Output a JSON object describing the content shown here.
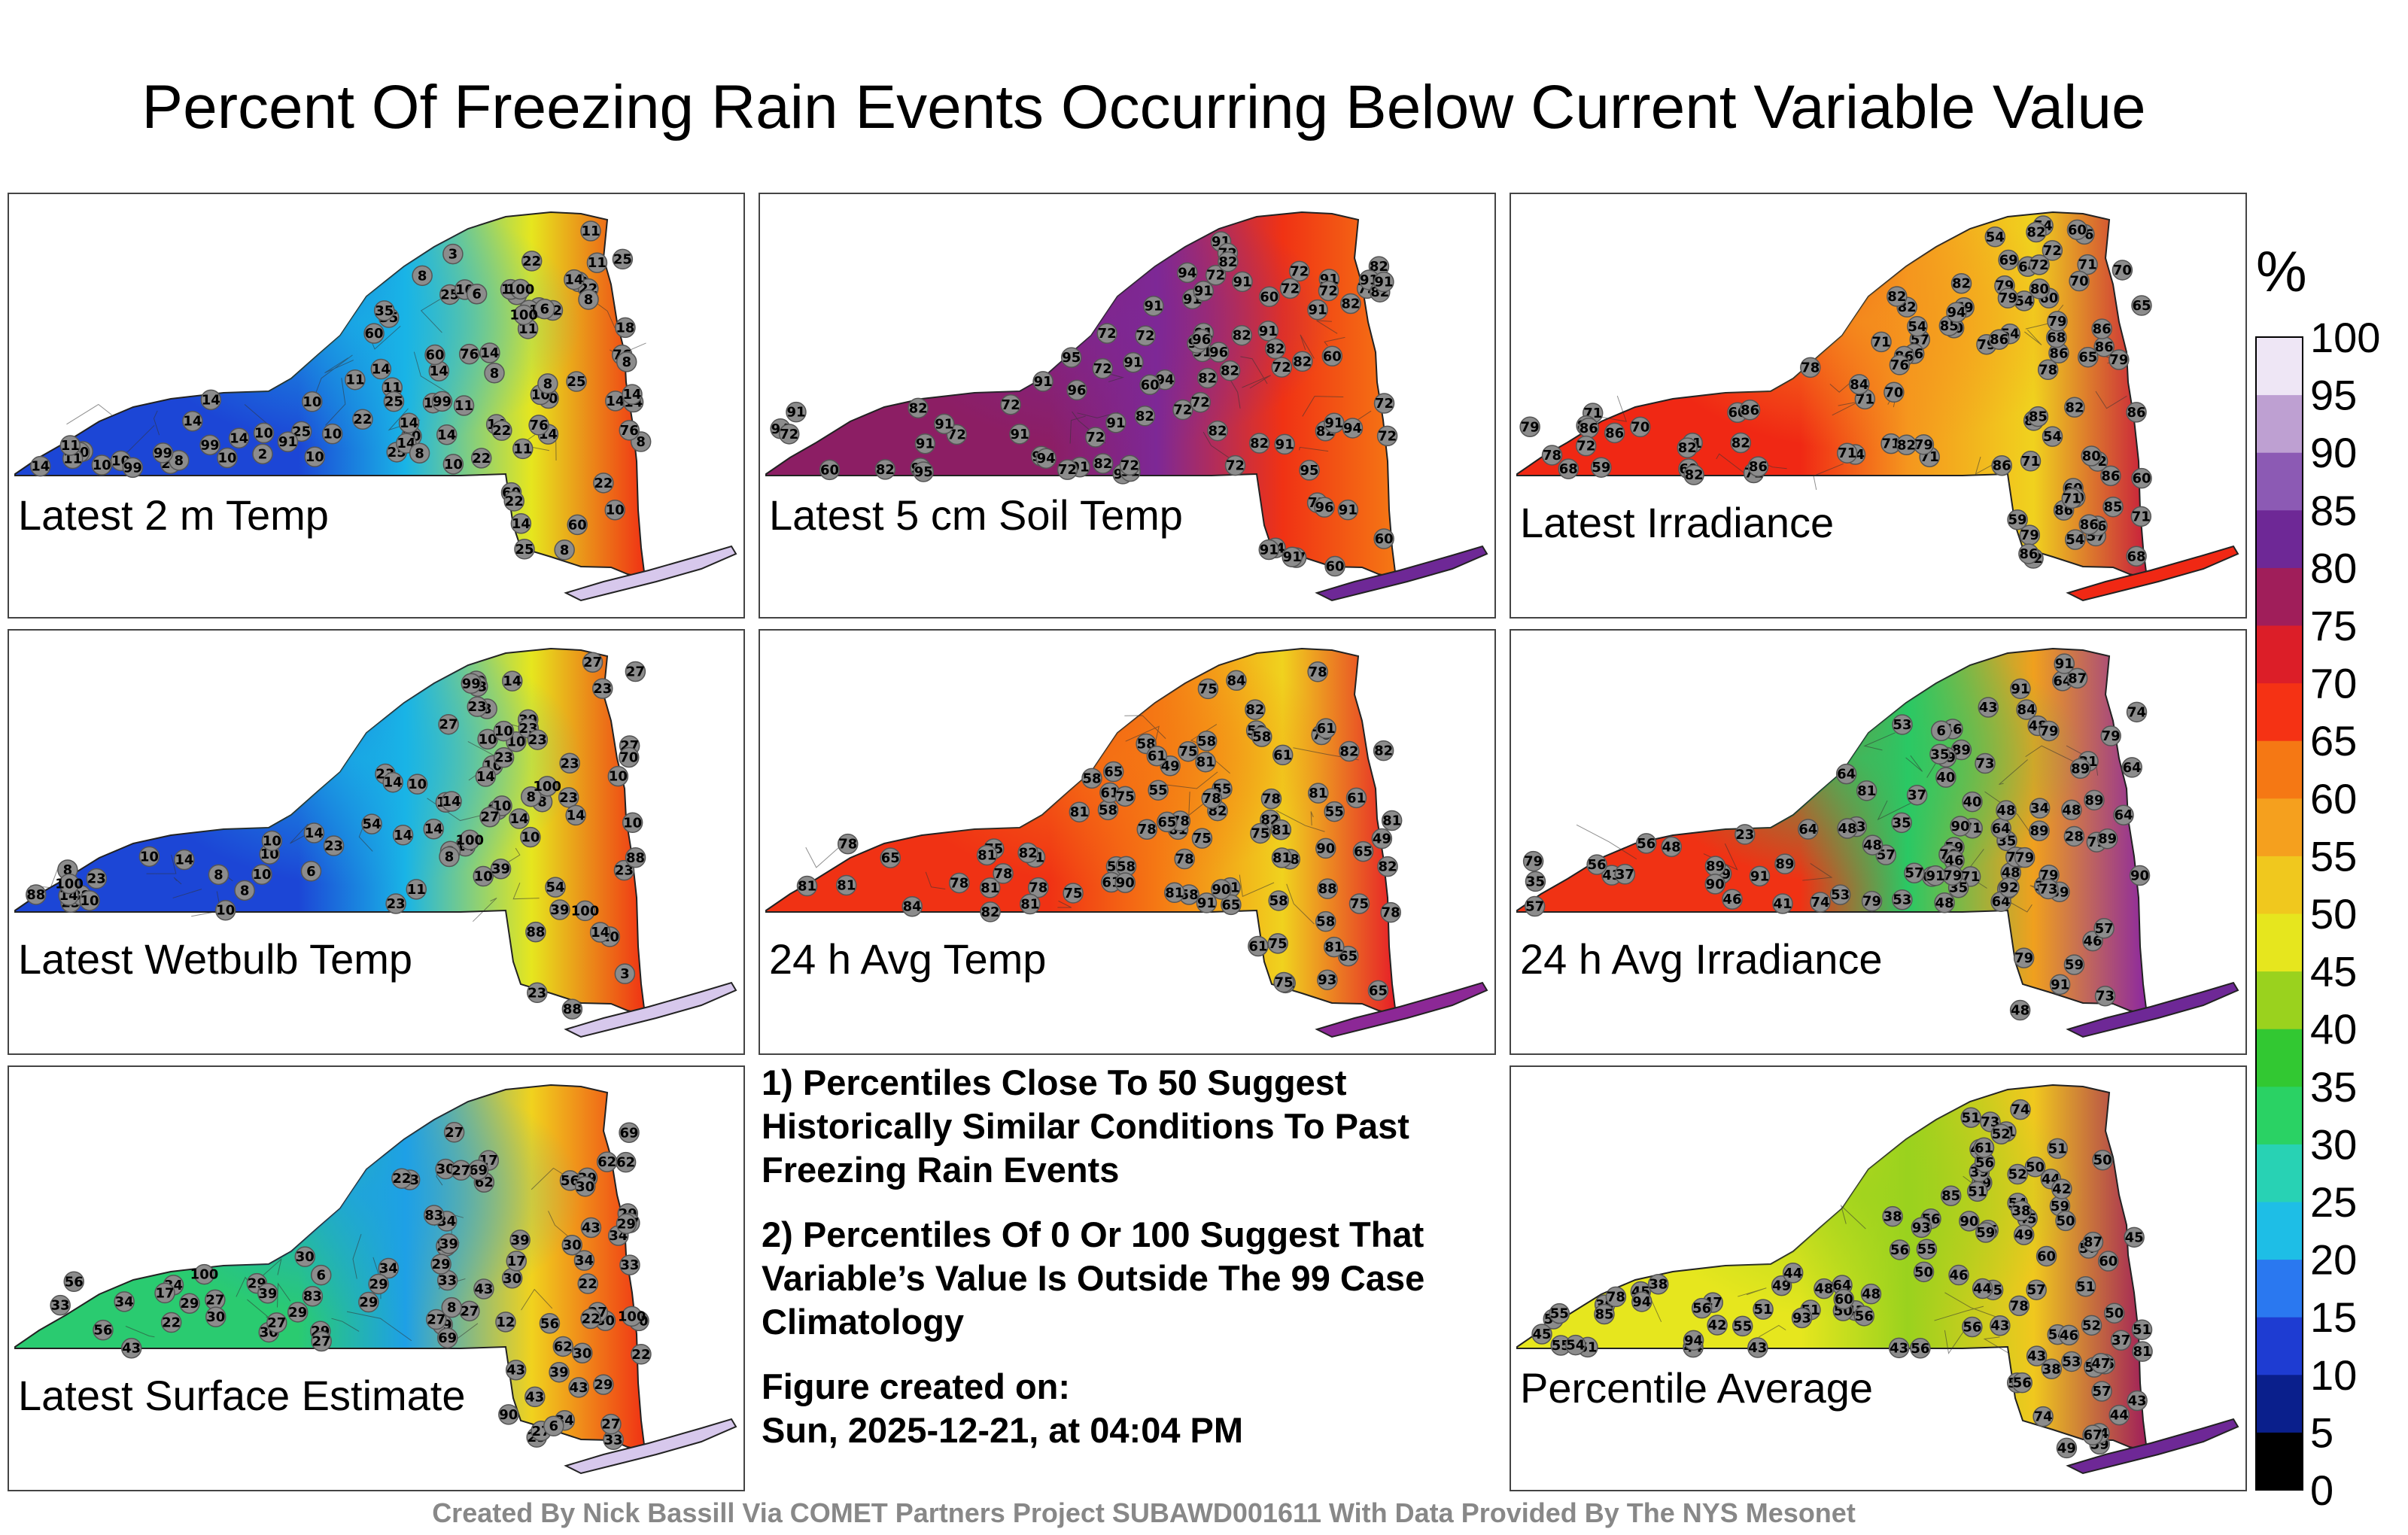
{
  "title": "Percent Of Freezing Rain Events Occurring Below Current Variable Value",
  "footer": "Created By Nick Bassill Via COMET Partners Project SUBAWD001611 With Data Provided By The NYS Mesonet",
  "notes": {
    "note1": "1) Percentiles Close To 50 Suggest Historically Similar Conditions To Past Freezing Rain Events",
    "note2": "2) Percentiles Of 0 Or 100 Suggest That Variable’s Value Is Outside The 99 Case Climatology",
    "created_label": "Figure created on:",
    "created_time": "Sun, 2025-12-21, at 04:04 PM"
  },
  "colorbar": {
    "unit": "%",
    "ticks": [
      "0",
      "5",
      "10",
      "15",
      "20",
      "25",
      "30",
      "35",
      "40",
      "45",
      "50",
      "55",
      "60",
      "65",
      "70",
      "75",
      "80",
      "85",
      "90",
      "95",
      "100"
    ],
    "colors": [
      "#000000",
      "#0a1f8c",
      "#1e3cd2",
      "#2a78f0",
      "#1ebee6",
      "#28d2b4",
      "#2ad264",
      "#32c832",
      "#9ad21e",
      "#e6e61e",
      "#f0c81e",
      "#f5a01e",
      "#f57814",
      "#f53214",
      "#dc1e28",
      "#a01e5a",
      "#6e2896",
      "#8c5ab4",
      "#bea0d2",
      "#eee6f5"
    ]
  },
  "chart_data": [
    {
      "type": "heatmap",
      "title": "Latest 2 m Temp",
      "colors": {
        "base": "#1c46d6",
        "mid": "#19b4e6",
        "east": "#e6e61e",
        "south": "#f03214",
        "li": "#d7c8ec"
      },
      "stations": [
        25,
        25,
        11,
        10,
        11,
        35,
        25,
        22,
        8,
        8,
        25,
        60,
        22,
        22,
        10,
        10,
        10,
        10,
        76,
        60,
        22,
        14,
        14,
        25,
        25,
        11,
        10,
        22,
        60,
        14,
        14,
        22,
        18,
        22,
        22,
        8,
        10,
        14,
        14,
        14,
        14,
        14,
        14,
        10,
        10,
        14,
        11,
        35,
        8,
        22,
        14,
        14,
        10,
        60,
        11,
        6,
        3,
        8,
        2,
        8,
        10,
        14,
        10,
        11,
        8,
        8,
        11,
        11,
        8,
        76,
        35,
        8,
        6,
        14,
        14,
        14,
        22,
        14,
        11,
        11,
        14,
        22,
        99,
        99,
        10,
        25,
        60,
        99,
        76,
        76,
        91,
        99,
        100,
        100
      ]
    },
    {
      "type": "heatmap",
      "title": "Latest 5 cm Soil Temp",
      "colors": {
        "base": "#8c1e64",
        "mid": "#7d2896",
        "east": "#f03214",
        "south": "#f57814",
        "li": "#6e2896"
      },
      "stations": [
        82,
        91,
        91,
        72,
        82,
        91,
        97,
        72,
        82,
        82,
        91,
        72,
        72,
        82,
        72,
        91,
        82,
        91,
        91,
        96,
        72,
        91,
        82,
        91,
        91,
        72,
        91,
        94,
        72,
        82,
        91,
        91,
        91,
        91,
        91,
        60,
        60,
        82,
        91,
        72,
        94,
        82,
        91,
        72,
        91,
        82,
        91,
        95,
        82,
        91,
        72,
        91,
        94,
        91,
        94,
        82,
        94,
        60,
        95,
        91,
        82,
        91,
        82,
        72,
        82,
        91,
        94,
        91,
        72,
        91,
        91,
        72,
        72,
        60,
        72,
        72,
        72,
        72,
        60,
        72,
        72,
        96,
        91,
        60,
        72,
        96,
        95,
        96
      ]
    },
    {
      "type": "heatmap",
      "title": "Latest Irradiance",
      "colors": {
        "base": "#f02814",
        "mid": "#f5961e",
        "east": "#f0d21e",
        "south": "#c81e3c",
        "li": "#f02814"
      },
      "stations": [
        59,
        57,
        54,
        54,
        54,
        86,
        54,
        54,
        68,
        71,
        60,
        60,
        57,
        82,
        79,
        59,
        60,
        71,
        64,
        54,
        54,
        71,
        71,
        68,
        70,
        86,
        86,
        86,
        68,
        69,
        71,
        79,
        70,
        82,
        86,
        82,
        86,
        86,
        71,
        79,
        69,
        60,
        54,
        65,
        71,
        82,
        82,
        79,
        82,
        79,
        82,
        86,
        86,
        71,
        79,
        71,
        65,
        71,
        82,
        86,
        69,
        70,
        70,
        82,
        82,
        71,
        82,
        80,
        60,
        79,
        72,
        86,
        86,
        78,
        72,
        86,
        86,
        79,
        86,
        71,
        72,
        86,
        80,
        85,
        86,
        86,
        79,
        70,
        94,
        86,
        82,
        78,
        78,
        76,
        85,
        85,
        84
      ]
    },
    {
      "type": "heatmap",
      "title": "Latest Wetbulb Temp",
      "colors": {
        "base": "#1c46d6",
        "mid": "#19b4e6",
        "east": "#e6e61e",
        "south": "#f03214",
        "li": "#d7c8ec"
      },
      "stations": [
        23,
        27,
        10,
        10,
        27,
        11,
        23,
        27,
        8,
        8,
        23,
        88,
        39,
        23,
        10,
        10,
        10,
        10,
        100,
        39,
        23,
        14,
        14,
        23,
        23,
        10,
        10,
        23,
        88,
        23,
        27,
        54,
        23,
        23,
        14,
        8,
        10,
        10,
        23,
        14,
        14,
        10,
        14,
        14,
        23,
        10,
        70,
        88,
        39,
        6,
        3,
        8,
        3,
        8,
        10,
        14,
        14,
        10,
        10,
        8,
        8,
        14,
        14,
        14,
        23,
        14,
        10,
        10,
        14,
        27,
        23,
        88,
        99,
        10,
        23,
        54,
        100,
        100,
        88,
        100
      ]
    },
    {
      "type": "heatmap",
      "title": "24 h Avg Temp",
      "colors": {
        "base": "#f03214",
        "mid": "#f57814",
        "east": "#f0d21e",
        "south": "#e61e28",
        "li": "#8c2896"
      },
      "stations": [
        75,
        78,
        75,
        78,
        81,
        81,
        78,
        49,
        58,
        55,
        58,
        78,
        81,
        58,
        75,
        58,
        65,
        65,
        49,
        55,
        78,
        81,
        61,
        58,
        75,
        81,
        81,
        82,
        84,
        81,
        82,
        75,
        81,
        78,
        58,
        81,
        78,
        81,
        58,
        78,
        82,
        82,
        82,
        81,
        75,
        61,
        65,
        78,
        61,
        58,
        58,
        78,
        61,
        61,
        65,
        61,
        75,
        58,
        78,
        82,
        82,
        75,
        61,
        75,
        58,
        55,
        65,
        78,
        78,
        65,
        75,
        81,
        61,
        81,
        65,
        81,
        88,
        82,
        84,
        81,
        81,
        90,
        90,
        91,
        93,
        90
      ]
    },
    {
      "type": "heatmap",
      "title": "24 h Avg Irradiance",
      "colors": {
        "base": "#f03214",
        "mid": "#2ac864",
        "east": "#f0a01e",
        "south": "#8c28a0",
        "li": "#6e2896"
      },
      "stations": [
        37,
        53,
        40,
        35,
        38,
        48,
        64,
        79,
        57,
        43,
        71,
        64,
        48,
        79,
        53,
        81,
        57,
        89,
        35,
        59,
        64,
        46,
        31,
        89,
        6,
        48,
        43,
        71,
        64,
        74,
        53,
        79,
        85,
        79,
        41,
        56,
        28,
        59,
        43,
        46,
        37,
        79,
        57,
        79,
        35,
        48,
        48,
        64,
        56,
        64,
        46,
        35,
        23,
        46,
        35,
        48,
        40,
        64,
        79,
        79,
        48,
        74,
        57,
        64,
        79,
        89,
        89,
        48,
        34,
        48,
        84,
        79,
        79,
        74,
        73,
        73,
        89,
        89,
        59,
        56,
        73,
        90,
        91,
        89,
        90,
        91,
        87,
        89,
        91,
        90,
        91,
        92,
        91
      ]
    },
    {
      "type": "heatmap",
      "title": "Latest Surface Estimate",
      "colors": {
        "base": "#2acb70",
        "mid": "#1ea0e6",
        "east": "#f0d21e",
        "south": "#f03214",
        "li": "#d7c8ec"
      },
      "stations": [
        39,
        29,
        27,
        39,
        30,
        34,
        22,
        17,
        62,
        56,
        43,
        29,
        29,
        27,
        69,
        43,
        29,
        30,
        27,
        27,
        43,
        33,
        34,
        56,
        43,
        62,
        34,
        30,
        56,
        34,
        83,
        33,
        12,
        33,
        27,
        39,
        29,
        30,
        29,
        30,
        34,
        27,
        43,
        22,
        30,
        34,
        29,
        33,
        56,
        27,
        62,
        30,
        6,
        8,
        17,
        27,
        17,
        29,
        33,
        22,
        29,
        29,
        39,
        43,
        39,
        69,
        27,
        17,
        22,
        6,
        30,
        34,
        30,
        29,
        27,
        30,
        62,
        90,
        22,
        29,
        39,
        69,
        83,
        100,
        100
      ]
    },
    {
      "type": "heatmap",
      "title": "Percentile Average",
      "colors": {
        "base": "#e6e61e",
        "mid": "#9ad21e",
        "east": "#f0c81e",
        "south": "#a01e5a",
        "li": "#6e2896"
      },
      "stations": [
        49,
        45,
        43,
        50,
        51,
        42,
        54,
        44,
        38,
        48,
        74,
        55,
        55,
        55,
        59,
        43,
        43,
        39,
        45,
        38,
        57,
        50,
        59,
        37,
        56,
        46,
        81,
        59,
        61,
        44,
        38,
        51,
        56,
        78,
        64,
        51,
        59,
        50,
        56,
        45,
        53,
        55,
        57,
        57,
        54,
        53,
        50,
        49,
        56,
        60,
        43,
        61,
        43,
        44,
        54,
        60,
        47,
        52,
        44,
        60,
        50,
        46,
        45,
        56,
        38,
        46,
        51,
        49,
        56,
        55,
        56,
        51,
        45,
        44,
        39,
        50,
        48,
        51,
        52,
        56,
        51,
        85,
        73,
        43,
        47,
        43,
        42,
        50,
        54,
        55,
        51,
        52,
        85,
        74,
        78,
        67,
        90,
        87,
        94,
        93,
        93,
        94
      ]
    }
  ]
}
